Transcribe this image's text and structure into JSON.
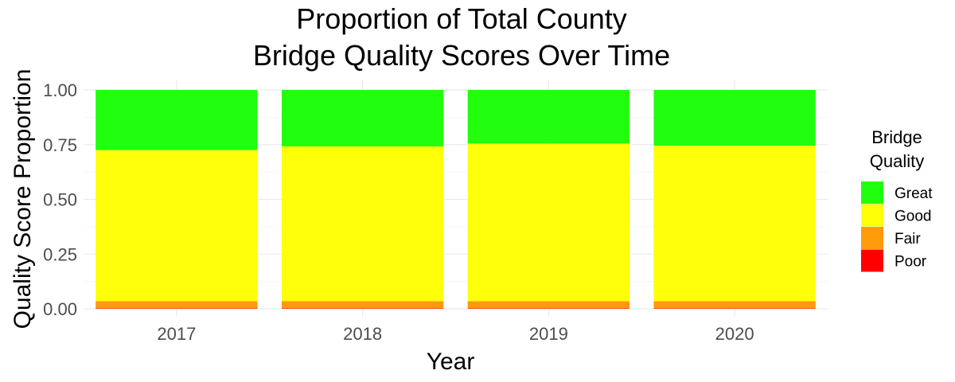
{
  "chart_data": {
    "type": "bar",
    "stacked": true,
    "title": [
      "Proportion of Total County",
      "Bridge Quality Scores Over Time"
    ],
    "xlabel": "Year",
    "ylabel": "Quality Score Proportion",
    "ylim": [
      0,
      1
    ],
    "yticks": [
      "0.00",
      "0.25",
      "0.50",
      "0.75",
      "1.00"
    ],
    "categories": [
      "2017",
      "2018",
      "2019",
      "2020"
    ],
    "series": [
      {
        "name": "Poor",
        "color": "#ff0000",
        "values": [
          0.002,
          0.002,
          0.002,
          0.002
        ]
      },
      {
        "name": "Fair",
        "color": "#ff9a0a",
        "values": [
          0.033,
          0.033,
          0.033,
          0.033
        ]
      },
      {
        "name": "Good",
        "color": "#ffff0a",
        "values": [
          0.69,
          0.707,
          0.72,
          0.71
        ]
      },
      {
        "name": "Great",
        "color": "#21ff0f",
        "values": [
          0.275,
          0.258,
          0.245,
          0.255
        ]
      }
    ],
    "legend": {
      "title": [
        "Bridge",
        "Quality"
      ],
      "placement": "right",
      "order": [
        "Great",
        "Good",
        "Fair",
        "Poor"
      ]
    },
    "grid": true
  }
}
